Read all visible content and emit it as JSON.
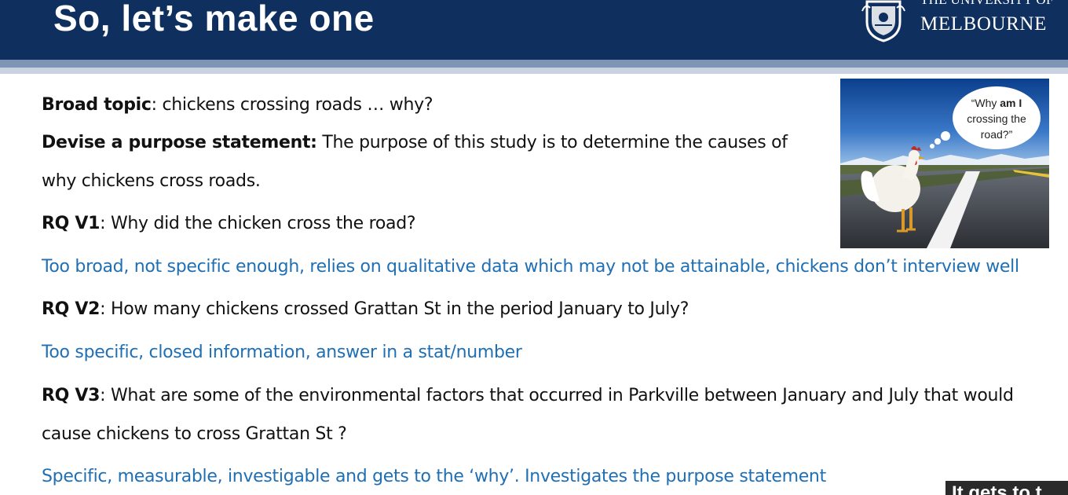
{
  "header": {
    "title": "So, let’s make one"
  },
  "logo": {
    "line1": "THE UNIVERSITY OF",
    "line2": "MELBOURNE"
  },
  "content": {
    "broad_topic": {
      "label": "Broad topic",
      "text": ": chickens crossing roads … why?"
    },
    "purpose": {
      "label": "Devise a purpose statement:",
      "text": " The purpose of this study is to determine the causes of",
      "text_line2": "why chickens cross roads."
    },
    "rq1": {
      "label": "RQ V1",
      "text": ": Why did the chicken cross the road?"
    },
    "rq1_comment": "Too broad, not specific enough, relies on qualitative data which may not be attainable, chickens don’t interview well",
    "rq2": {
      "label": "RQ V2",
      "text": ": How many chickens crossed Grattan St in the period January to July?"
    },
    "rq2_comment": "Too specific, closed information, answer in a stat/number",
    "rq3": {
      "label": "RQ V3",
      "text": ": What are some of the environmental factors that occurred in Parkville between January and July that would",
      "text_line2": "cause chickens to cross Grattan St ?"
    },
    "rq3_comment": "Specific, measurable, investigable and gets to the ‘why’. Investigates the purpose statement"
  },
  "image": {
    "bubble_pre": "“Why ",
    "bubble_bold": "am I",
    "bubble_line2": "crossing the",
    "bubble_line3": "road?”"
  },
  "corner_tag": "It gets to t"
}
